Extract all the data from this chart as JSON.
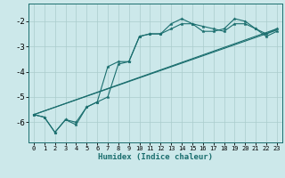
{
  "xlabel": "Humidex (Indice chaleur)",
  "bg_color": "#cce8ea",
  "grid_color": "#aacccc",
  "line_color": "#1a6e6e",
  "xlim": [
    -0.5,
    23.5
  ],
  "ylim": [
    -6.8,
    -1.3
  ],
  "yticks": [
    -6,
    -5,
    -4,
    -3,
    -2
  ],
  "xticks": [
    0,
    1,
    2,
    3,
    4,
    5,
    6,
    7,
    8,
    9,
    10,
    11,
    12,
    13,
    14,
    15,
    16,
    17,
    18,
    19,
    20,
    21,
    22,
    23
  ],
  "series": [
    {
      "x": [
        0,
        1,
        2,
        3,
        4,
        5,
        6,
        7,
        8,
        9,
        10,
        11,
        12,
        13,
        14,
        15,
        16,
        17,
        18,
        19,
        20,
        21,
        22,
        23
      ],
      "y": [
        -5.7,
        -5.8,
        -6.4,
        -5.9,
        -6.0,
        -5.4,
        -5.2,
        -5.0,
        -3.7,
        -3.6,
        -2.6,
        -2.5,
        -2.5,
        -2.3,
        -2.1,
        -2.1,
        -2.2,
        -2.3,
        -2.4,
        -2.1,
        -2.1,
        -2.3,
        -2.5,
        -2.3
      ],
      "marker": true
    },
    {
      "x": [
        0,
        1,
        2,
        3,
        4,
        5,
        6,
        7,
        8,
        9,
        10,
        11,
        12,
        13,
        14,
        15,
        16,
        17,
        18,
        19,
        20,
        21,
        22,
        23
      ],
      "y": [
        -5.7,
        -5.8,
        -6.4,
        -5.9,
        -6.1,
        -5.4,
        -5.2,
        -3.8,
        -3.6,
        -3.6,
        -2.6,
        -2.5,
        -2.5,
        -2.1,
        -1.9,
        -2.1,
        -2.4,
        -2.4,
        -2.3,
        -1.9,
        -2.0,
        -2.3,
        -2.6,
        -2.4
      ],
      "marker": true
    },
    {
      "x": [
        0,
        23
      ],
      "y": [
        -5.7,
        -2.3
      ],
      "marker": false
    },
    {
      "x": [
        0,
        23
      ],
      "y": [
        -5.7,
        -2.35
      ],
      "marker": false
    }
  ]
}
